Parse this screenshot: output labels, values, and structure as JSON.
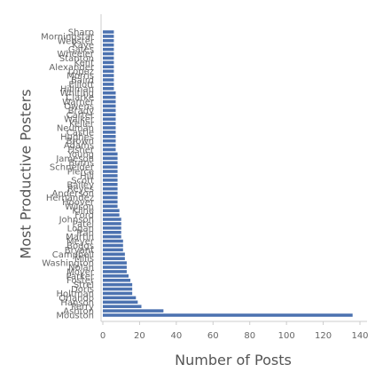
{
  "chart_data": {
    "type": "bar",
    "orientation": "horizontal",
    "title": "",
    "xlabel": "Number of Posts",
    "ylabel": "Most Productive Posters",
    "xlim": [
      0,
      140
    ],
    "xticks": [
      0,
      20,
      40,
      60,
      80,
      100,
      120,
      140
    ],
    "grid": false,
    "legend": "none",
    "bar_color": "#4c72b0",
    "categories": [
      "Mouston",
      "Ashton",
      "Perry",
      "Hanson",
      "Orlando",
      "Holtman",
      "Doris",
      "Strel",
      "Foster",
      "Parker",
      "Moyer",
      "Nolan",
      "Washington",
      "Mills",
      "Campbell",
      "Bryant",
      "Boggs",
      "Meyer",
      "Martin",
      "Tran",
      "Logan",
      "Patel",
      "Johnson",
      "Ford",
      "Kline",
      "Wilson",
      "Hoover",
      "Hernandez",
      "Anderson",
      "Reyes",
      "Bailey",
      "Scott",
      "Hill",
      "Pierce",
      "Schneider",
      "Burns",
      "Jameson",
      "Young",
      "Fisher",
      "Adams",
      "Brown",
      "Hughes",
      "Castle",
      "Neuman",
      "Keller",
      "Walker",
      "Carter",
      "Brady",
      "Owens",
      "Warner",
      "Clarke",
      "Whiting",
      "Hillman",
      "Elliott",
      "Baird",
      "Morris",
      "Lopez",
      "Alexander",
      "Kent",
      "Stanton",
      "Wheeler",
      "Gates",
      "Kaye",
      "Webster",
      "Morningstar",
      "Sharp"
    ],
    "values": [
      136,
      33,
      21,
      19,
      18,
      16,
      16,
      16,
      15,
      14,
      13,
      13,
      13,
      12,
      12,
      11,
      11,
      11,
      10,
      10,
      10,
      10,
      10,
      9,
      9,
      8,
      8,
      8,
      8,
      8,
      8,
      8,
      8,
      8,
      8,
      8,
      8,
      8,
      7,
      7,
      7,
      7,
      7,
      7,
      7,
      7,
      7,
      7,
      7,
      7,
      7,
      7,
      6,
      6,
      6,
      6,
      6,
      6,
      6,
      6,
      6,
      6,
      6,
      6,
      6,
      6
    ]
  }
}
